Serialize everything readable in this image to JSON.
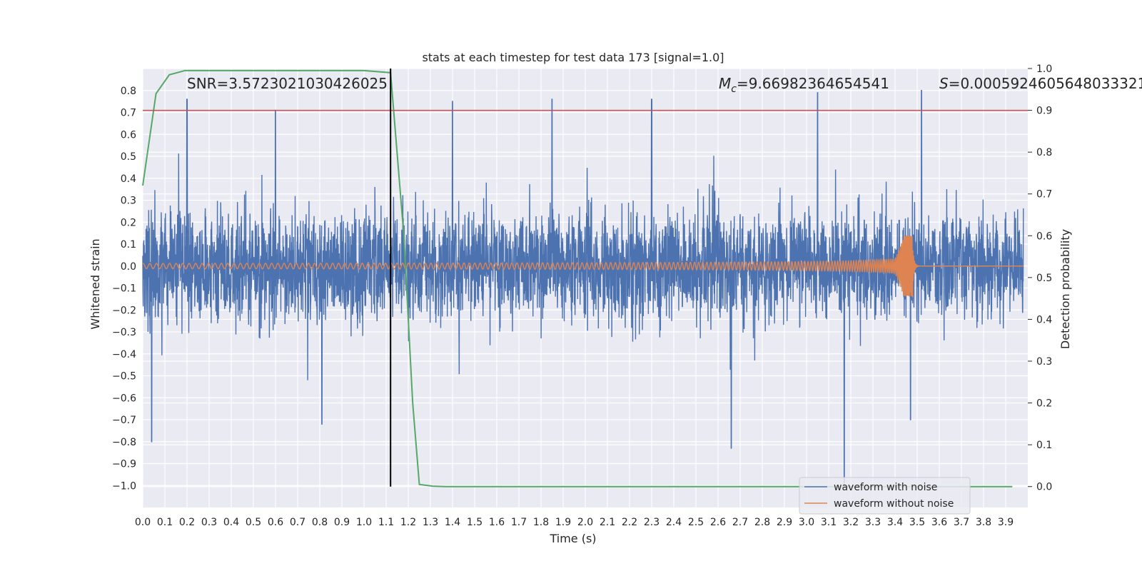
{
  "chart_data": {
    "type": "line",
    "title": "stats at each timestep for test data 173 [signal=1.0]",
    "xlabel": "Time (s)",
    "ylabel": "Whitened strain",
    "ylabel_right": "Detection probability",
    "xlim": [
      0.0,
      4.0
    ],
    "ylim": [
      -1.1,
      0.9
    ],
    "ylim_right": [
      -0.05,
      1.0
    ],
    "xticks": [
      0.0,
      0.1,
      0.2,
      0.3,
      0.4,
      0.5,
      0.6,
      0.7,
      0.8,
      0.9,
      1.0,
      1.1,
      1.2,
      1.3,
      1.4,
      1.5,
      1.6,
      1.7,
      1.8,
      1.9,
      2.0,
      2.1,
      2.2,
      2.3,
      2.4,
      2.5,
      2.6,
      2.7,
      2.8,
      2.9,
      3.0,
      3.1,
      3.2,
      3.3,
      3.4,
      3.5,
      3.6,
      3.7,
      3.8,
      3.9
    ],
    "xtick_labels": [
      "0.0",
      "0.1",
      "0.2",
      "0.3",
      "0.4",
      "0.5",
      "0.6",
      "0.7",
      "0.8",
      "0.9",
      "1.0",
      "1.1",
      "1.2",
      "1.3",
      "1.4",
      "1.5",
      "1.6",
      "1.7",
      "1.8",
      "1.9",
      "2.0",
      "2.1",
      "2.2",
      "2.3",
      "2.4",
      "2.5",
      "2.6",
      "2.7",
      "2.8",
      "2.9",
      "3.0",
      "3.1",
      "3.2",
      "3.3",
      "3.4",
      "3.5",
      "3.6",
      "3.7",
      "3.8",
      "3.9"
    ],
    "yticks": [
      0.8,
      0.7,
      0.6,
      0.5,
      0.4,
      0.3,
      0.2,
      0.1,
      0.0,
      -0.1,
      -0.2,
      -0.3,
      -0.4,
      -0.5,
      -0.6,
      -0.7,
      -0.8,
      -0.9,
      -1.0
    ],
    "ytick_labels": [
      "0.8",
      "0.7",
      "0.6",
      "0.5",
      "0.4",
      "0.3",
      "0.2",
      "0.1",
      "0.0",
      "−0.1",
      "−0.2",
      "−0.3",
      "−0.4",
      "−0.5",
      "−0.6",
      "−0.7",
      "−0.8",
      "−0.9",
      "−1.0"
    ],
    "yticks_right": [
      1.0,
      0.9,
      0.8,
      0.7,
      0.6,
      0.5,
      0.4,
      0.3,
      0.2,
      0.1,
      0.0
    ],
    "ytick_labels_right": [
      "1.0",
      "0.9",
      "0.8",
      "0.7",
      "0.6",
      "0.5",
      "0.4",
      "0.3",
      "0.2",
      "0.1",
      "0.0"
    ],
    "annotations": {
      "snr": "SNR=3.5723021030426025",
      "mc_symbol": "M",
      "mc_subscript": "c",
      "mc_value": "=9.66982364654541",
      "s_symbol": "S",
      "s_value": "=0.0005924605648033321"
    },
    "legend": {
      "placement": "lower-right",
      "entries": [
        "waveform with noise",
        "waveform without noise"
      ]
    },
    "colors": {
      "background": "#eaeaf2",
      "grid": "#ffffff",
      "noise": "#4c72b0",
      "clean": "#dd8452",
      "probability": "#55a868",
      "threshold": "#c44e52",
      "marker": "#000000"
    },
    "series": [
      {
        "name": "waveform with noise",
        "axis": "left",
        "description": "dense noisy whitened strain, roughly -0.5..0.5 with spikes to +/-0.8",
        "spikes": [
          [
            0.04,
            -0.8
          ],
          [
            0.2,
            0.76
          ],
          [
            0.6,
            0.71
          ],
          [
            0.81,
            -0.72
          ],
          [
            1.4,
            0.75
          ],
          [
            1.85,
            0.76
          ],
          [
            2.3,
            0.76
          ],
          [
            2.66,
            -0.83
          ],
          [
            3.05,
            0.79
          ],
          [
            3.17,
            -1.0
          ],
          [
            3.52,
            0.8
          ],
          [
            3.47,
            -0.7
          ]
        ]
      },
      {
        "name": "waveform without noise",
        "axis": "left",
        "description": "chirp signal, amplitude grows toward merger near t=3.48s then rings down",
        "merger_time": 3.48,
        "peak_amplitude": 0.14
      },
      {
        "name": "detection probability",
        "axis": "right",
        "x": [
          0.0,
          0.06,
          0.12,
          0.19,
          0.25,
          0.5,
          0.75,
          1.0,
          1.12,
          1.18,
          1.22,
          1.25,
          1.31,
          1.37,
          2.0,
          3.0,
          3.93
        ],
        "y": [
          0.72,
          0.94,
          0.985,
          0.995,
          0.995,
          0.995,
          0.995,
          0.995,
          0.99,
          0.6,
          0.2,
          0.005,
          0.001,
          0.0,
          0.0,
          0.0,
          0.0
        ]
      }
    ],
    "threshold_right": 0.9,
    "marker_x": 1.12
  }
}
